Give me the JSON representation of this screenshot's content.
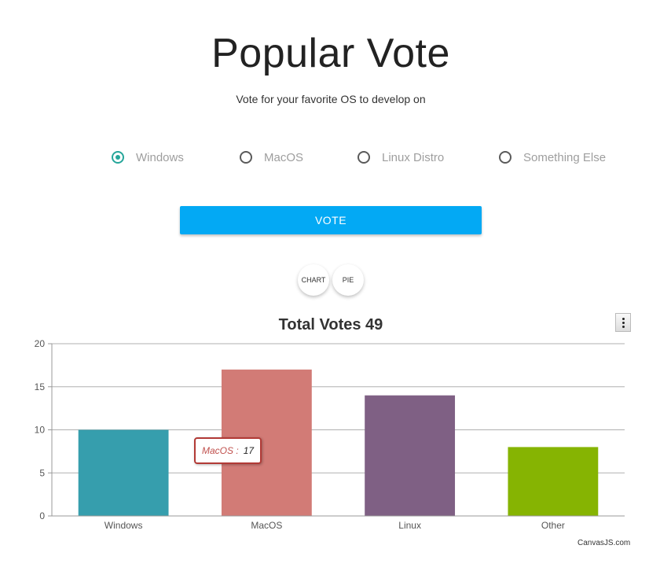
{
  "header": {
    "title": "Popular Vote",
    "subtitle": "Vote for your favorite OS to develop on"
  },
  "options": [
    {
      "label": "Windows",
      "checked": true
    },
    {
      "label": "MacOS",
      "checked": false
    },
    {
      "label": "Linux Distro",
      "checked": false
    },
    {
      "label": "Something Else",
      "checked": false
    }
  ],
  "vote_button": {
    "label": "VOTE"
  },
  "view_toggles": {
    "chart": "CHART",
    "pie": "PIE"
  },
  "credit": "CanvasJS.com",
  "tooltip": {
    "name": "MacOS :",
    "value": "17"
  },
  "colors": {
    "accent": "#03a9f4",
    "radio_checked": "#26a69a"
  },
  "chart_data": {
    "type": "bar",
    "title": "Total Votes 49",
    "categories": [
      "Windows",
      "MacOS",
      "Linux",
      "Other"
    ],
    "values": [
      10,
      17,
      14,
      8
    ],
    "colors": [
      "#369ead",
      "#d27b76",
      "#7f6084",
      "#86b402"
    ],
    "ylim": [
      0,
      20
    ],
    "yticks": [
      0,
      5,
      10,
      15,
      20
    ],
    "xlabel": "",
    "ylabel": "",
    "grid": true,
    "legend": "none"
  }
}
